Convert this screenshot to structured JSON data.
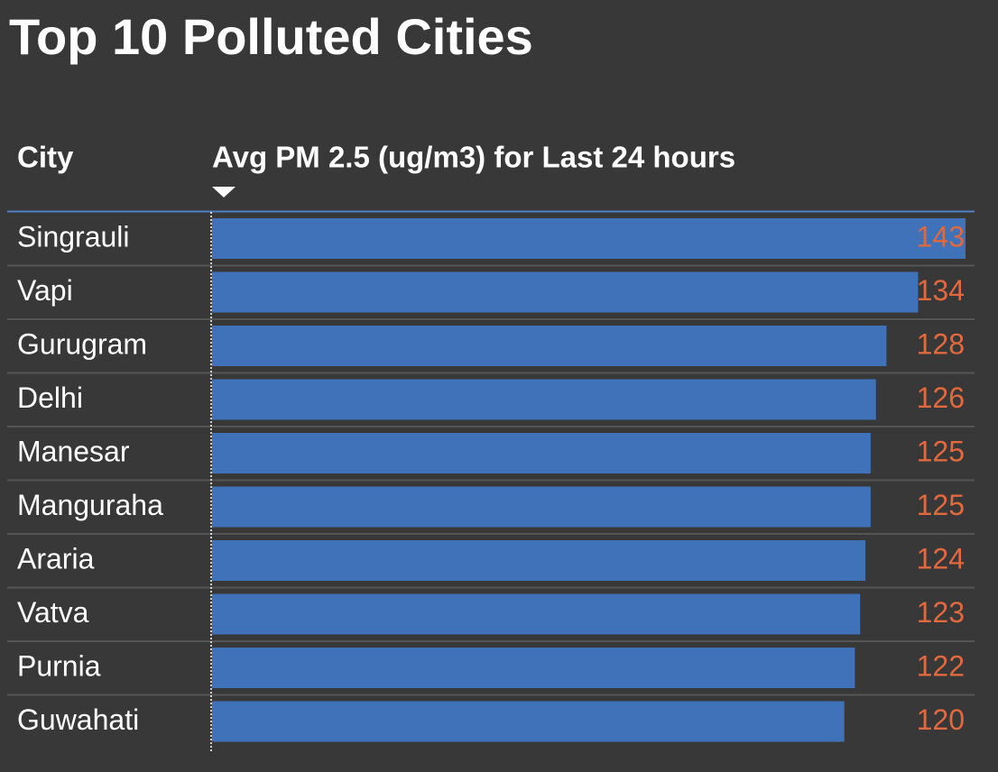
{
  "chart_data": {
    "type": "bar",
    "title": "Top 10 Polluted Cities",
    "columns": [
      "City",
      "Avg PM 2.5 (ug/m3) for Last 24 hours"
    ],
    "categories": [
      "Singrauli",
      "Vapi",
      "Gurugram",
      "Delhi",
      "Manesar",
      "Manguraha",
      "Araria",
      "Vatva",
      "Purnia",
      "Guwahati"
    ],
    "values": [
      143,
      134,
      128,
      126,
      125,
      125,
      124,
      123,
      122,
      120
    ],
    "color": "#3f72b8",
    "label_color": "#e2683d"
  }
}
